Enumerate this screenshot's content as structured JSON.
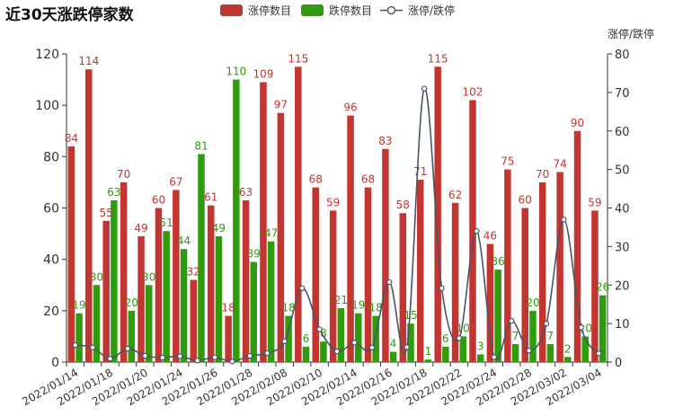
{
  "chart_data": {
    "type": "bar",
    "title": "近30天涨跌停家数",
    "legend": {
      "placement": "top-center",
      "items": [
        "涨停数目",
        "跌停数目",
        "涨停/跌停"
      ]
    },
    "xlabel": "",
    "ylabel": "",
    "y2label": "涨停/跌停",
    "ylim": [
      0,
      120
    ],
    "y2lim": [
      0,
      80
    ],
    "grid": false,
    "x_ticks_shown": [
      "2022/01/14",
      "2022/01/18",
      "2022/01/20",
      "2022/01/24",
      "2022/01/26",
      "2022/01/28",
      "2022/02/08",
      "2022/02/10",
      "2022/02/14",
      "2022/02/16",
      "2022/02/18",
      "2022/02/22",
      "2022/02/24",
      "2022/02/28",
      "2022/03/02",
      "2022/03/04"
    ],
    "series": [
      {
        "name": "涨停数目",
        "axis": "left",
        "color": "#c23531",
        "values": [
          84,
          114,
          55,
          70,
          49,
          60,
          67,
          32,
          61,
          18,
          63,
          109,
          97,
          115,
          68,
          59,
          96,
          68,
          83,
          58,
          71,
          115,
          62,
          102,
          46,
          75,
          60,
          70,
          74,
          90,
          59
        ]
      },
      {
        "name": "跌停数目",
        "axis": "left",
        "color": "#2e9c0d",
        "values": [
          19,
          30,
          63,
          20,
          30,
          51,
          44,
          81,
          49,
          110,
          39,
          47,
          18,
          6,
          8,
          21,
          19,
          18,
          4,
          15,
          1,
          6,
          10,
          3,
          36,
          7,
          20,
          7,
          2,
          10,
          26
        ]
      },
      {
        "name": "涨停/跌停",
        "axis": "right",
        "type": "line",
        "color": "#4a5563",
        "values": [
          4.42,
          3.8,
          0.87,
          3.5,
          1.63,
          1.18,
          1.52,
          0.4,
          1.24,
          0.16,
          1.62,
          2.32,
          5.39,
          19.17,
          8.5,
          2.81,
          5.05,
          3.78,
          20.75,
          3.87,
          71,
          19.17,
          6.2,
          34,
          1.28,
          10.71,
          3,
          10,
          37,
          9,
          2.27
        ]
      }
    ]
  }
}
